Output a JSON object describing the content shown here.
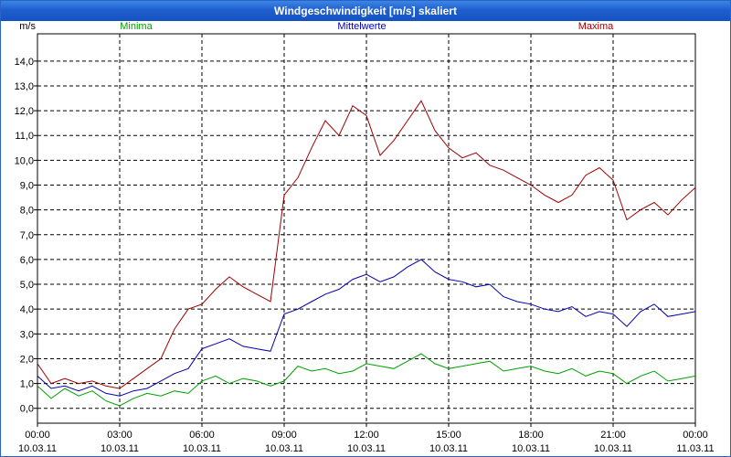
{
  "window": {
    "title": "Windgeschwindigkeit [m/s] skaliert"
  },
  "chart_data": {
    "type": "line",
    "title": "Windgeschwindigkeit [m/s] skaliert",
    "ylabel": "m/s",
    "xlabel": "",
    "ylim": [
      -0.6,
      15.1
    ],
    "xlim": [
      0,
      24
    ],
    "grid": true,
    "y_ticks": [
      "0,0",
      "1,0",
      "2,0",
      "3,0",
      "4,0",
      "5,0",
      "6,0",
      "7,0",
      "8,0",
      "9,0",
      "10,0",
      "11,0",
      "12,0",
      "13,0",
      "14,0"
    ],
    "x_ticks": [
      {
        "time": "00:00",
        "date": "10.03.11"
      },
      {
        "time": "03:00",
        "date": "10.03.11"
      },
      {
        "time": "06:00",
        "date": "10.03.11"
      },
      {
        "time": "09:00",
        "date": "10.03.11"
      },
      {
        "time": "12:00",
        "date": "10.03.11"
      },
      {
        "time": "15:00",
        "date": "10.03.11"
      },
      {
        "time": "18:00",
        "date": "10.03.11"
      },
      {
        "time": "21:00",
        "date": "10.03.11"
      },
      {
        "time": "00:00",
        "date": "11.03.11"
      }
    ],
    "series": [
      {
        "name": "Minima",
        "color": "#00a000",
        "x": [
          0,
          0.5,
          1,
          1.5,
          2,
          2.5,
          3,
          3.5,
          4,
          4.5,
          5,
          5.5,
          6,
          6.5,
          7,
          7.5,
          8,
          8.5,
          9,
          9.5,
          10,
          10.5,
          11,
          11.5,
          12,
          12.5,
          13,
          13.5,
          14,
          14.5,
          15,
          15.5,
          16,
          16.5,
          17,
          17.5,
          18,
          18.5,
          19,
          19.5,
          20,
          20.5,
          21,
          21.5,
          22,
          22.5,
          23,
          23.5,
          24
        ],
        "values": [
          0.9,
          0.4,
          0.8,
          0.5,
          0.7,
          0.3,
          0.1,
          0.4,
          0.6,
          0.5,
          0.7,
          0.6,
          1.1,
          1.3,
          1.0,
          1.2,
          1.1,
          0.9,
          1.1,
          1.7,
          1.5,
          1.6,
          1.4,
          1.5,
          1.8,
          1.7,
          1.6,
          1.9,
          2.2,
          1.8,
          1.6,
          1.7,
          1.8,
          1.9,
          1.5,
          1.6,
          1.7,
          1.5,
          1.4,
          1.6,
          1.3,
          1.5,
          1.4,
          1.0,
          1.3,
          1.5,
          1.1,
          1.2,
          1.3
        ]
      },
      {
        "name": "Mittelwerte",
        "color": "#0000b0",
        "x": [
          0,
          0.5,
          1,
          1.5,
          2,
          2.5,
          3,
          3.5,
          4,
          4.5,
          5,
          5.5,
          6,
          6.5,
          7,
          7.5,
          8,
          8.5,
          9,
          9.5,
          10,
          10.5,
          11,
          11.5,
          12,
          12.5,
          13,
          13.5,
          14,
          14.5,
          15,
          15.5,
          16,
          16.5,
          17,
          17.5,
          18,
          18.5,
          19,
          19.5,
          20,
          20.5,
          21,
          21.5,
          22,
          22.5,
          23,
          23.5,
          24
        ],
        "values": [
          1.3,
          0.8,
          0.9,
          0.7,
          0.9,
          0.6,
          0.5,
          0.7,
          0.8,
          1.1,
          1.4,
          1.6,
          2.4,
          2.6,
          2.8,
          2.5,
          2.4,
          2.3,
          3.8,
          4.0,
          4.3,
          4.6,
          4.8,
          5.2,
          5.4,
          5.1,
          5.3,
          5.7,
          6.0,
          5.5,
          5.2,
          5.1,
          4.9,
          5.0,
          4.5,
          4.3,
          4.2,
          4.0,
          3.9,
          4.1,
          3.7,
          3.9,
          3.8,
          3.3,
          3.9,
          4.2,
          3.7,
          3.8,
          3.9
        ]
      },
      {
        "name": "Maxima",
        "color": "#a00000",
        "x": [
          0,
          0.5,
          1,
          1.5,
          2,
          2.5,
          3,
          3.5,
          4,
          4.5,
          5,
          5.5,
          6,
          6.5,
          7,
          7.5,
          8,
          8.5,
          9,
          9.5,
          10,
          10.5,
          11,
          11.5,
          12,
          12.5,
          13,
          13.5,
          14,
          14.5,
          15,
          15.5,
          16,
          16.5,
          17,
          17.5,
          18,
          18.5,
          19,
          19.5,
          20,
          20.5,
          21,
          21.5,
          22,
          22.5,
          23,
          23.5,
          24
        ],
        "values": [
          1.8,
          1.0,
          1.2,
          1.0,
          1.1,
          0.9,
          0.8,
          1.2,
          1.6,
          2.0,
          3.2,
          4.0,
          4.2,
          4.8,
          5.3,
          4.9,
          4.6,
          4.3,
          8.6,
          9.3,
          10.5,
          11.6,
          11.0,
          12.2,
          11.8,
          10.2,
          10.8,
          11.6,
          12.4,
          11.2,
          10.5,
          10.1,
          10.3,
          9.8,
          9.6,
          9.3,
          9.0,
          8.6,
          8.3,
          8.6,
          9.4,
          9.7,
          9.2,
          7.6,
          8.0,
          8.3,
          7.8,
          8.4,
          8.9
        ]
      }
    ]
  }
}
